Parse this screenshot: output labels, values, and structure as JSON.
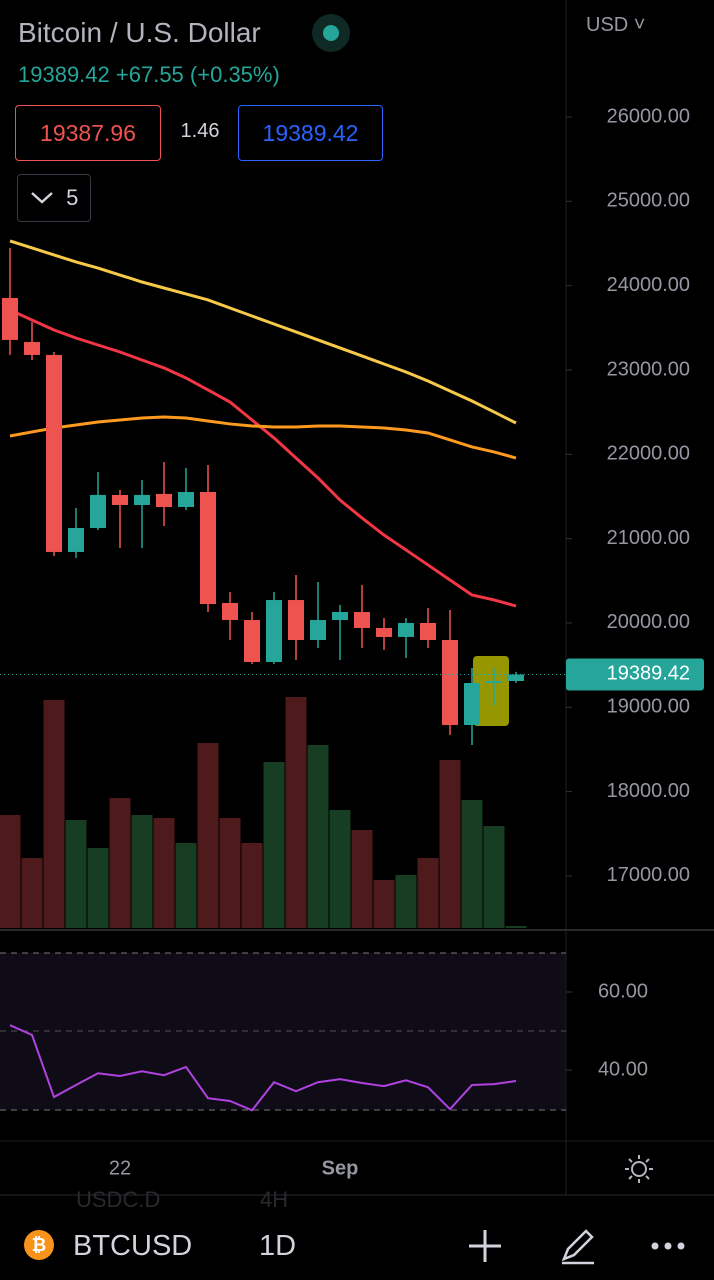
{
  "header": {
    "title": "Bitcoin / U.S. Dollar",
    "price": "19389.42",
    "change": "+67.55",
    "change_pct": "(+0.35%)",
    "bid": "19387.96",
    "spread": "1.46",
    "ask": "19389.42",
    "indicators_count": "5",
    "currency": "USD"
  },
  "chart_data": {
    "type": "candlestick",
    "categories": [
      null,
      null,
      null,
      null,
      null,
      "22",
      null,
      null,
      null,
      null,
      null,
      null,
      null,
      null,
      null,
      "Sep",
      null,
      null,
      null,
      null,
      null,
      null,
      null,
      null
    ],
    "open": [
      23854,
      23332,
      23178,
      20842,
      21126,
      21518,
      21399,
      21530,
      21375,
      21553,
      20237,
      20035,
      19537,
      20272,
      19798,
      20035,
      20130,
      19940,
      19834,
      20000,
      19798,
      18790,
      19288,
      19312
    ],
    "high": [
      24447,
      23569,
      23213,
      21363,
      21790,
      21577,
      21695,
      21909,
      21838,
      21873,
      20367,
      20130,
      20367,
      20569,
      20486,
      20213,
      20451,
      20059,
      20059,
      20178,
      20154,
      19466,
      19466,
      19420
    ],
    "low": [
      23178,
      23118,
      20794,
      20771,
      21103,
      20889,
      20889,
      21150,
      21340,
      20130,
      19798,
      19514,
      19514,
      19561,
      19703,
      19561,
      19703,
      19680,
      19585,
      19703,
      18672,
      18553,
      19027,
      19290
    ],
    "close": [
      23356,
      23178,
      20842,
      21126,
      21518,
      21399,
      21518,
      21375,
      21553,
      20225,
      20035,
      19537,
      20272,
      19798,
      20035,
      20130,
      19940,
      19834,
      20000,
      19798,
      18790,
      19288,
      19312,
      19389.42
    ],
    "up_color": "#26a69a",
    "down_color": "#ef5350",
    "volume": [
      113,
      70,
      228,
      108,
      80,
      130,
      113,
      110,
      85,
      185,
      110,
      85,
      166,
      231,
      183,
      118,
      98,
      48,
      53,
      70,
      168,
      128,
      102,
      2
    ],
    "volume_ylim": [
      0,
      928
    ],
    "volume_up_color": "#173d22",
    "volume_down_color": "#4e1a1c",
    "overlays": [
      {
        "color": "#f7c948",
        "values": [
          24530,
          24447,
          24364,
          24281,
          24209,
          24126,
          24043,
          23972,
          23901,
          23830,
          23735,
          23640,
          23545,
          23451,
          23356,
          23261,
          23166,
          23071,
          22976,
          22869,
          22751,
          22632,
          22502,
          22371
        ]
      },
      {
        "color": "#f23645",
        "values": [
          23711,
          23593,
          23474,
          23379,
          23296,
          23213,
          23118,
          23024,
          22905,
          22763,
          22620,
          22407,
          22194,
          21956,
          21719,
          21458,
          21245,
          21043,
          20866,
          20688,
          20510,
          20332,
          20273,
          20201
        ]
      },
      {
        "color": "#ff9a1f",
        "values": [
          22217,
          22265,
          22312,
          22348,
          22383,
          22407,
          22431,
          22443,
          22431,
          22395,
          22360,
          22336,
          22324,
          22324,
          22336,
          22336,
          22324,
          22312,
          22288,
          22253,
          22170,
          22087,
          22028,
          21956
        ]
      }
    ],
    "ylim": [
      16383,
      27387
    ],
    "yticks": [
      {
        "value": 17000,
        "label": "17000.00"
      },
      {
        "value": 18000,
        "label": "18000.00"
      },
      {
        "value": 19000,
        "label": "19000.00"
      },
      {
        "value": 20000,
        "label": "20000.00"
      },
      {
        "value": 21000,
        "label": "21000.00"
      },
      {
        "value": 22000,
        "label": "22000.00"
      },
      {
        "value": 23000,
        "label": "23000.00"
      },
      {
        "value": 24000,
        "label": "24000.00"
      },
      {
        "value": 25000,
        "label": "25000.00"
      },
      {
        "value": 26000,
        "label": "26000.00"
      }
    ],
    "current_price": 19389.42,
    "current_price_color": "#26a69a",
    "rsi": {
      "color": "#b042e0",
      "values": [
        51.5,
        49,
        33.1,
        36.2,
        39.2,
        38.5,
        39.7,
        38.7,
        40.8,
        32.8,
        32.1,
        29.7,
        36.9,
        34.6,
        36.9,
        37.7,
        36.7,
        35.9,
        37.4,
        35.6,
        30.0,
        36.2,
        36.4,
        37.2
      ],
      "ylim": [
        22.1,
        74.6
      ],
      "yticks": [
        {
          "value": 40,
          "label": "40.00"
        },
        {
          "value": 60,
          "label": "60.00"
        }
      ]
    }
  },
  "toolbar": {
    "symbol": "BTCUSD",
    "interval": "1D",
    "ghost_symbol": "USDC.D",
    "ghost_interval": "4H"
  }
}
